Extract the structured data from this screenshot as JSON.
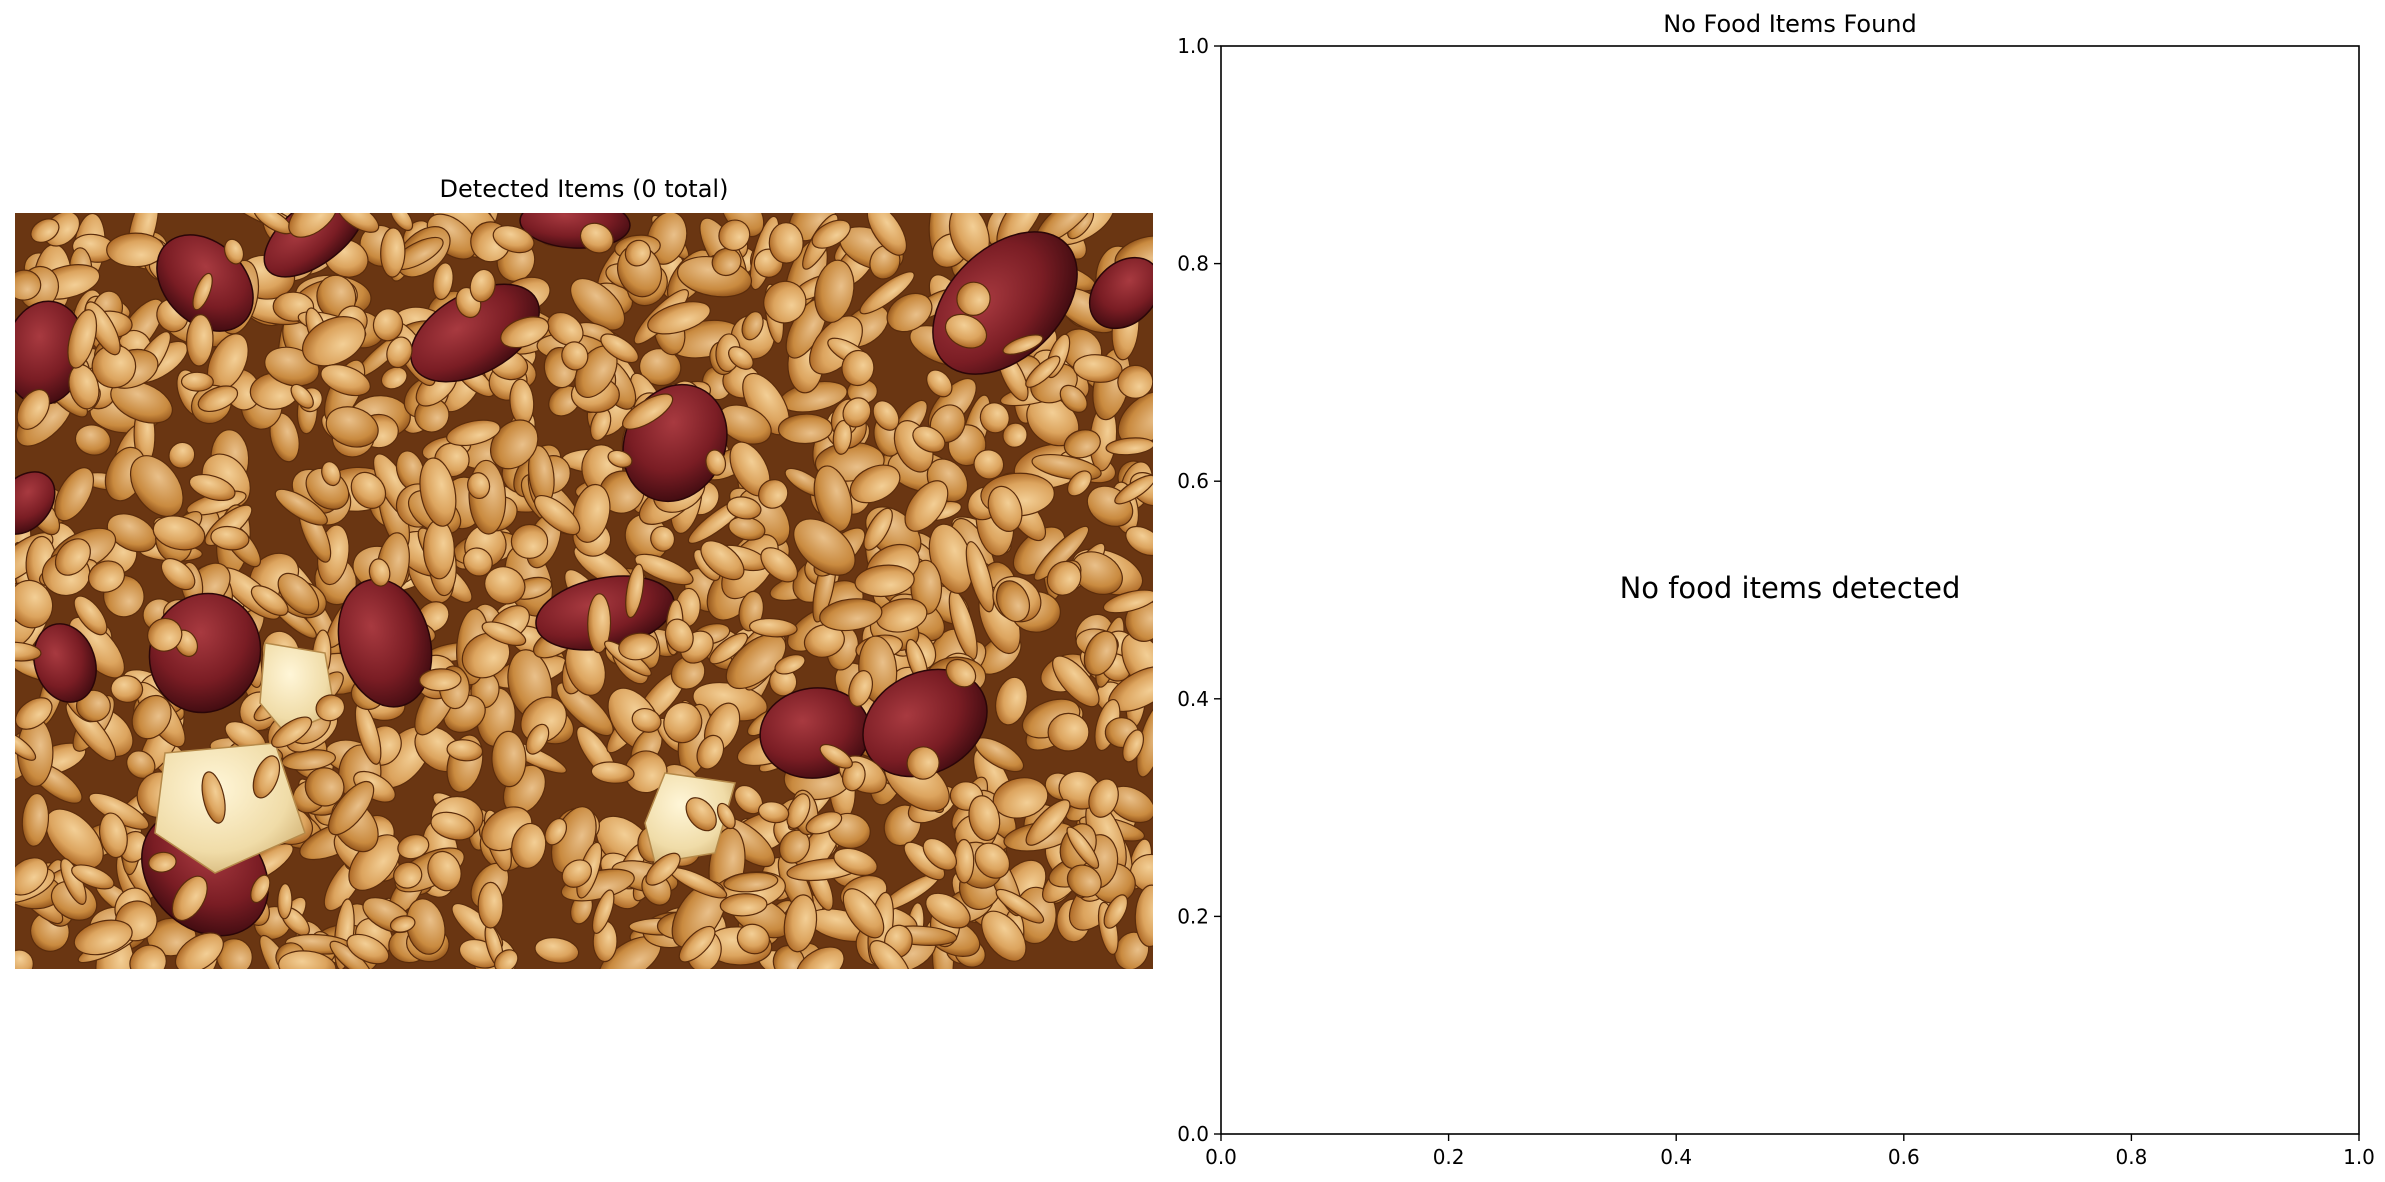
{
  "left_panel": {
    "title": "Detected Items (0 total)",
    "image_subject": "granola clusters with dried cranberries and nut pieces"
  },
  "chart_data": {
    "type": "scatter",
    "title": "No Food Items Found",
    "xlabel": "",
    "ylabel": "",
    "xlim": [
      0.0,
      1.0
    ],
    "ylim": [
      0.0,
      1.0
    ],
    "x_ticks": [
      "0.0",
      "0.2",
      "0.4",
      "0.6",
      "0.8",
      "1.0"
    ],
    "y_ticks": [
      "0.0",
      "0.2",
      "0.4",
      "0.6",
      "0.8",
      "1.0"
    ],
    "series": [],
    "grid": false,
    "annotation": "No food items detected"
  },
  "colors": {
    "oat_light": "#e3b070",
    "oat_dark": "#b9722c",
    "cranberry": "#7a1d24",
    "nut": "#f1e0b4",
    "background_dark": "#6a3612"
  }
}
